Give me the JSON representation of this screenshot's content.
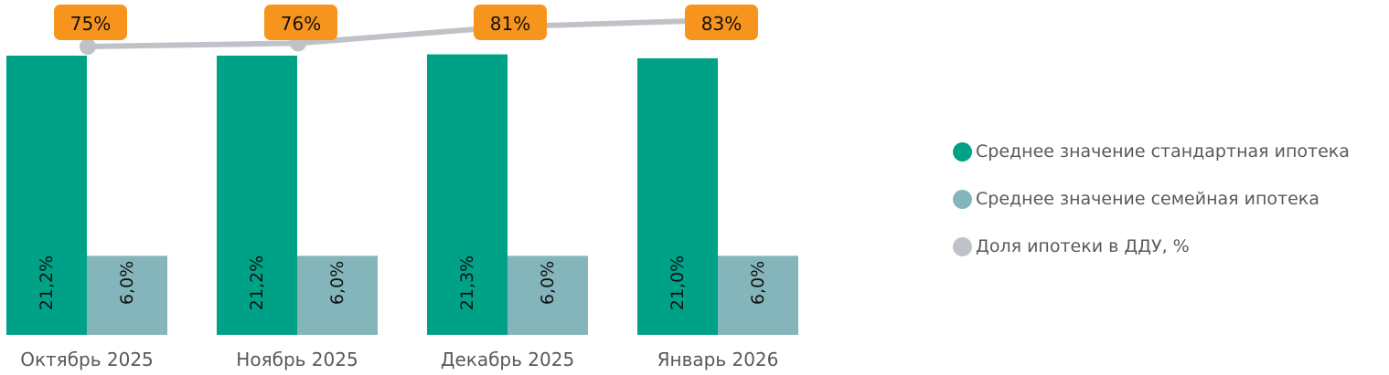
{
  "chart_data": {
    "type": "bar",
    "title": "",
    "xlabel": "",
    "ylabel": "",
    "categories": [
      "Октябрь 2025",
      "Ноябрь 2025",
      "Декабрь 2025",
      "Январь 2026"
    ],
    "series": [
      {
        "name": "Среднее значение стандартная ипотека",
        "type": "bar",
        "color": "#00A287",
        "values": [
          21.2,
          21.2,
          21.3,
          21.0
        ],
        "labels": [
          "21,2%",
          "21,2%",
          "21,3%",
          "21,0%"
        ]
      },
      {
        "name": "Среднее значение семейная ипотека",
        "type": "bar",
        "color": "#84B5BA",
        "values": [
          6.0,
          6.0,
          6.0,
          6.0
        ],
        "labels": [
          "6,0%",
          "6,0%",
          "6,0%",
          "6,0%"
        ]
      },
      {
        "name": "Доля ипотеки в ДДУ, %",
        "type": "line",
        "color": "#BFC3C7",
        "values": [
          75,
          76,
          81,
          83
        ],
        "labels": [
          "75%",
          "76%",
          "81%",
          "83%"
        ],
        "label_bg": "#F7941D"
      }
    ],
    "grid": false,
    "legend_position": "right"
  },
  "legend": [
    {
      "label": "Среднее значение стандартная ипотека",
      "color": "#00A287"
    },
    {
      "label": "Среднее значение семейная ипотека",
      "color": "#84B5BA"
    },
    {
      "label": "Доля ипотеки в ДДУ, %",
      "color": "#BFC3C7"
    }
  ]
}
